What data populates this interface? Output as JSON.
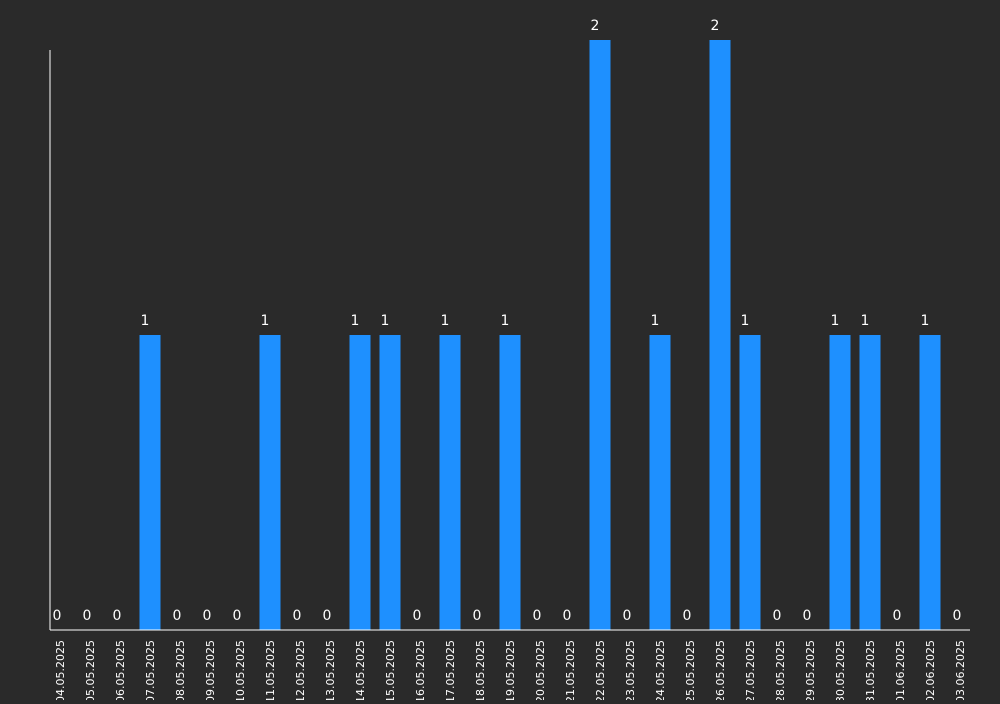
{
  "colors": {
    "background": "#2a2a2a",
    "bar": "#1e90ff",
    "axis": "#ffffff",
    "text": "#ffffff"
  },
  "chart_data": {
    "type": "bar",
    "categories": [
      "04.05.2025",
      "05.05.2025",
      "06.05.2025",
      "07.05.2025",
      "08.05.2025",
      "09.05.2025",
      "10.05.2025",
      "11.05.2025",
      "12.05.2025",
      "13.05.2025",
      "14.05.2025",
      "15.05.2025",
      "16.05.2025",
      "17.05.2025",
      "18.05.2025",
      "19.05.2025",
      "20.05.2025",
      "21.05.2025",
      "22.05.2025",
      "23.05.2025",
      "24.05.2025",
      "25.05.2025",
      "26.05.2025",
      "27.05.2025",
      "28.05.2025",
      "29.05.2025",
      "30.05.2025",
      "31.05.2025",
      "01.06.2025",
      "02.06.2025",
      "03.06.2025"
    ],
    "values": [
      0,
      0,
      0,
      1,
      0,
      0,
      0,
      1,
      0,
      0,
      1,
      1,
      0,
      1,
      0,
      1,
      0,
      0,
      2,
      0,
      1,
      0,
      2,
      1,
      0,
      0,
      1,
      1,
      0,
      1,
      0
    ],
    "title": "",
    "xlabel": "",
    "ylabel": "",
    "ylim": [
      0,
      2
    ],
    "grid": false,
    "data_labels": true
  }
}
